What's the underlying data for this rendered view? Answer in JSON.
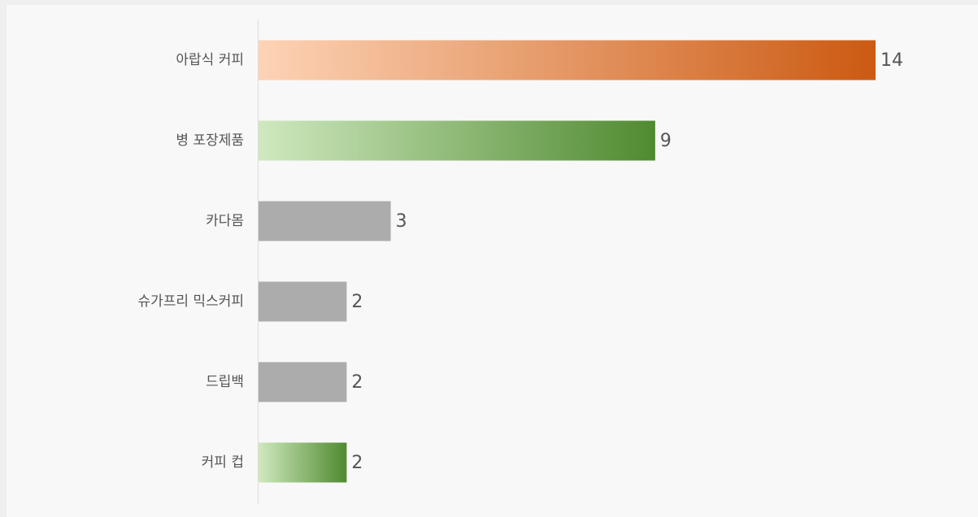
{
  "chart_data": {
    "type": "bar",
    "orientation": "horizontal",
    "categories": [
      "아랍식 커피",
      "병 포장제품",
      "카다몸",
      "슈가프리 믹스커피",
      "드립백",
      "커피 컵"
    ],
    "values": [
      14,
      9,
      3,
      2,
      2,
      2
    ],
    "value_labels": [
      "14",
      "9",
      "3",
      "2",
      "2",
      "2"
    ],
    "bar_styles": [
      "orange-gradient",
      "green-gradient",
      "gray",
      "gray",
      "gray",
      "green-gradient"
    ],
    "xlim": [
      0,
      14
    ],
    "grid": false,
    "legend": "none",
    "colors": {
      "orange_start": "#fdd3b6",
      "orange_end": "#cb5a12",
      "green_start": "#cfe9bf",
      "green_end": "#4f8a30",
      "gray": "#acacac",
      "axis": "#dddddd",
      "text": "#555555",
      "background": "#f8f8f8"
    }
  }
}
